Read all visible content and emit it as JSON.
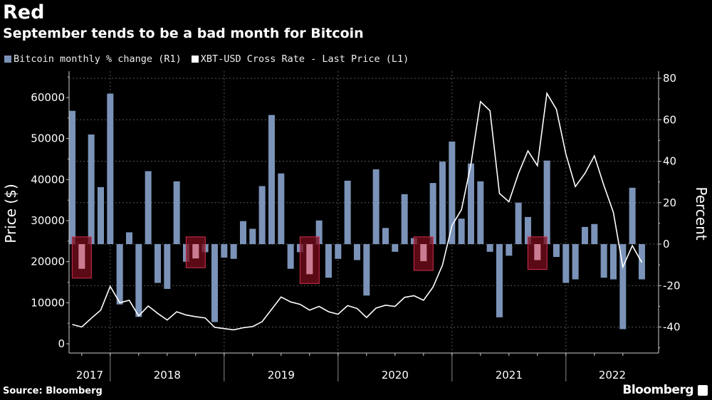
{
  "header": {
    "title": "Red",
    "subtitle": "September tends to be a bad month for Bitcoin"
  },
  "footer": {
    "source": "Source: Bloomberg",
    "brand": "Bloomberg"
  },
  "colors": {
    "background": "#000000",
    "bars": "#7b93b8",
    "line": "#ffffff",
    "highlight_fill": "#7a0d1c",
    "highlight_stroke": "#d03050",
    "grid": "#555555"
  },
  "chart_data": {
    "type": "bar+line",
    "title": "September tends to be a bad month for Bitcoin",
    "legend": [
      {
        "label": "Bitcoin monthly % change (R1)",
        "color": "#7b93b8"
      },
      {
        "label": "XBT-USD Cross Rate - Last Price (L1)",
        "color": "#ffffff"
      }
    ],
    "legend_placement": "top-left",
    "grid": true,
    "x": {
      "start_month": "2017-08",
      "end_month": "2022-08",
      "year_labels": [
        "2017",
        "2018",
        "2019",
        "2020",
        "2021",
        "2022"
      ]
    },
    "y_left": {
      "label": "Price ($)",
      "ticks": [
        0,
        10000,
        20000,
        30000,
        40000,
        50000,
        60000
      ],
      "range": [
        -2000,
        66000
      ]
    },
    "y_right": {
      "label": "Percent",
      "ticks": [
        -40,
        -20,
        0,
        20,
        40,
        60,
        80
      ],
      "range": [
        -52,
        83
      ]
    },
    "highlighted_months": [
      "2017-09",
      "2018-09",
      "2019-09",
      "2020-09",
      "2021-09"
    ],
    "series": [
      {
        "name": "Bitcoin monthly % change (R1)",
        "axis": "right",
        "kind": "bar",
        "values": [
          64.3,
          -11.9,
          52.9,
          27.5,
          72.6,
          -29.1,
          5.7,
          -35.1,
          35.2,
          -18.7,
          -21.6,
          30.3,
          -8.5,
          -6.9,
          -3.9,
          -37.6,
          -6.5,
          -7.1,
          11.1,
          7.4,
          28.0,
          62.3,
          34.1,
          -11.9,
          -3.9,
          -14.5,
          11.4,
          -16.2,
          -7.1,
          30.6,
          -7.7,
          -24.8,
          36.1,
          7.8,
          -3.7,
          24.1,
          2.9,
          -8.2,
          29.5,
          39.8,
          49.5,
          12.3,
          38.9,
          30.3,
          -3.7,
          -35.3,
          -5.6,
          20.0,
          13.1,
          -7.7,
          40.3,
          -6.2,
          -18.7,
          -17.0,
          8.3,
          9.7,
          -16.2,
          -17.0,
          -41.0,
          27.2,
          -17.0
        ]
      },
      {
        "name": "XBT-USD Cross Rate - Last Price (L1)",
        "axis": "left",
        "kind": "line",
        "values": [
          4700,
          4100,
          6200,
          8200,
          14000,
          10000,
          10600,
          6800,
          9200,
          7400,
          5800,
          7800,
          7000,
          6600,
          6300,
          4000,
          3700,
          3400,
          3900,
          4200,
          5400,
          8400,
          11400,
          10200,
          9600,
          8200,
          9100,
          7800,
          7200,
          9300,
          8600,
          6400,
          8700,
          9400,
          9100,
          11300,
          11700,
          10600,
          13800,
          19200,
          28800,
          32700,
          43800,
          59000,
          56800,
          36600,
          34600,
          41500,
          47000,
          43400,
          61000,
          57100,
          46200,
          38300,
          41500,
          45800,
          38600,
          32000,
          18700,
          23900,
          19800
        ]
      }
    ]
  }
}
